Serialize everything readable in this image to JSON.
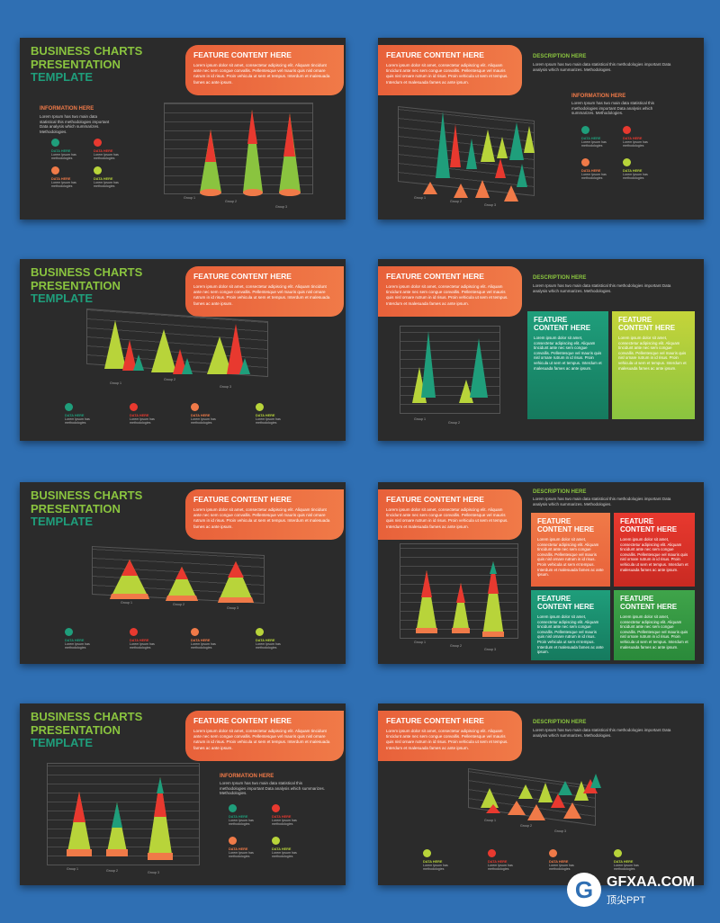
{
  "colors": {
    "orange": "#f07a48",
    "green": "#8ac43f",
    "teal": "#1f9e7b",
    "red": "#e8392f",
    "yellowgreen": "#b8d43a",
    "bg": "#2b2b2b",
    "page": "#2f6fb3"
  },
  "title": {
    "l1": "BUSINESS CHARTS",
    "l2": "PRESENTATION",
    "l3": "TEMPLATE"
  },
  "feature": {
    "heading": "FEATURE CONTENT HERE",
    "body": "Lorem ipsum dolor sit amet, consectetur adipiscing elit. Aliquam tincidunt ante nec sem congue convallis. Pellentesque vel mauris quis nisl ornare rutrum in id risus. Proin vehicula ut sem et tempus. Interdum et malesuada fames ac ante ipsum."
  },
  "info": {
    "heading": "INFORMATION HERE",
    "body": "Lorem Ipsum has two main data statistical this methodologies important Data analysis which summarizes. Methodologies."
  },
  "description": {
    "heading": "DESCRIPTION HERE",
    "body": "Lorem Ipsum has two main data statistical this methodologies important Data analysis which summarizes. Methodologies."
  },
  "legend": {
    "label": "DATA HERE",
    "text": "Lorem Ipsum has methodologies"
  },
  "box": {
    "heading": "FEATURE CONTENT HERE",
    "body": "Lorem ipsum dolor sit amet, consectetur adipiscing elit. Aliquam tincidunt ante nec sem congue convallis. Pellentesque vel mauris quis nisl ornare rutrum in id risus. Proin vehicula ut sem et tempus. Interdum et malesuada fames ac ante ipsum."
  },
  "axis": {
    "group1": "Group 1",
    "group2": "Group 2",
    "group3": "Group 3"
  },
  "watermark": {
    "logo": "G",
    "name": "GFXAA.COM",
    "sub": "顶尖PPT"
  }
}
